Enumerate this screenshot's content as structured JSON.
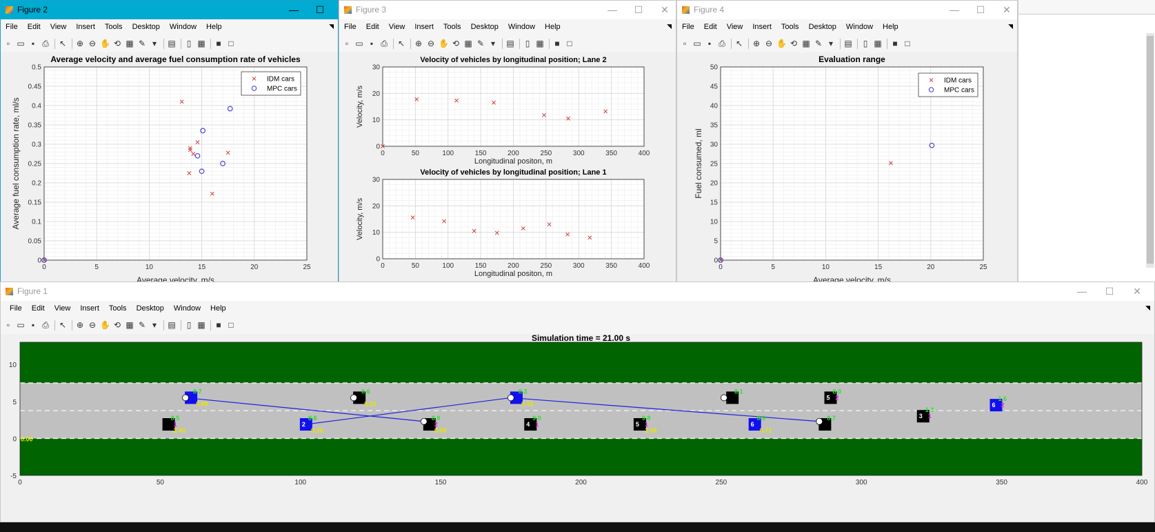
{
  "windows": {
    "fig2": {
      "title": "Figure 2",
      "active": true
    },
    "fig3": {
      "title": "Figure 3"
    },
    "fig4": {
      "title": "Figure 4"
    },
    "fig1": {
      "title": "Figure 1"
    }
  },
  "menu": [
    "File",
    "Edit",
    "View",
    "Insert",
    "Tools",
    "Desktop",
    "Window",
    "Help"
  ],
  "title_buttons": {
    "minimize": "—",
    "maximize": "☐",
    "close": "✕"
  },
  "colors": {
    "idm": "#d04040",
    "mpc": "#3a3ad0",
    "road": "#c0c0c0",
    "grass": "#006400",
    "titlebar_active": "#00aad0"
  },
  "chart_data": [
    {
      "id": "fig2",
      "type": "scatter",
      "title": "Average velocity and average fuel consumption rate of vehicles",
      "xlabel": "Average velocity, m/s",
      "ylabel": "Average fuel consumption rate, ml/s",
      "xlim": [
        0,
        25
      ],
      "ylim": [
        0,
        0.5
      ],
      "xticks": [
        "0",
        "5",
        "10",
        "15",
        "20",
        "25"
      ],
      "yticks": [
        "0",
        "0.05",
        "0.1",
        "0.15",
        "0.2",
        "0.25",
        "0.3",
        "0.35",
        "0.4",
        "0.45",
        "0.5"
      ],
      "grid": true,
      "legend": "top-right",
      "series": [
        {
          "name": "IDM cars",
          "marker": "x",
          "points": [
            [
              0,
              0
            ],
            [
              13.1,
              0.41
            ],
            [
              13.9,
              0.29
            ],
            [
              13.9,
              0.285
            ],
            [
              14.2,
              0.275
            ],
            [
              14.6,
              0.305
            ],
            [
              13.8,
              0.225
            ],
            [
              16.0,
              0.172
            ],
            [
              17.5,
              0.278
            ]
          ]
        },
        {
          "name": "MPC cars",
          "marker": "o",
          "points": [
            [
              0,
              0
            ],
            [
              15.1,
              0.335
            ],
            [
              14.6,
              0.27
            ],
            [
              15.0,
              0.23
            ],
            [
              17.0,
              0.25
            ],
            [
              17.7,
              0.392
            ]
          ]
        }
      ]
    },
    {
      "id": "fig3a",
      "type": "scatter",
      "title": "Velocity of vehicles by longitudinal position; Lane 2",
      "xlabel": "Longitudinal positon, m",
      "ylabel": "Velocity, m/s",
      "xlim": [
        0,
        400
      ],
      "ylim": [
        0,
        30
      ],
      "xticks": [
        "0",
        "50",
        "100",
        "150",
        "200",
        "250",
        "300",
        "350",
        "400"
      ],
      "yticks": [
        "0",
        "10",
        "20",
        "30"
      ],
      "grid": true,
      "series": [
        {
          "marker": "x",
          "points": [
            [
              0,
              0
            ],
            [
              52,
              17.8
            ],
            [
              113,
              17.3
            ],
            [
              170,
              16.5
            ],
            [
              247,
              11.8
            ],
            [
              284,
              10.5
            ],
            [
              341,
              13.2
            ]
          ]
        }
      ]
    },
    {
      "id": "fig3b",
      "type": "scatter",
      "title": "Velocity of vehicles by longitudinal position; Lane 1",
      "xlabel": "Longitudinal positon, m",
      "ylabel": "Velocity, m/s",
      "xlim": [
        0,
        400
      ],
      "ylim": [
        0,
        30
      ],
      "xticks": [
        "0",
        "50",
        "100",
        "150",
        "200",
        "250",
        "300",
        "350",
        "400"
      ],
      "yticks": [
        "0",
        "10",
        "20",
        "30"
      ],
      "grid": true,
      "series": [
        {
          "marker": "x",
          "points": [
            [
              46,
              15.6
            ],
            [
              94,
              14.2
            ],
            [
              140,
              10.5
            ],
            [
              175,
              9.8
            ],
            [
              215,
              11.5
            ],
            [
              255,
              13.0
            ],
            [
              283,
              9.2
            ],
            [
              317,
              8.0
            ]
          ]
        }
      ]
    },
    {
      "id": "fig4",
      "type": "scatter",
      "title": "Evaluation range",
      "xlabel": "Average velocity, m/s",
      "ylabel": "Fuel consumed, ml",
      "xlim": [
        0,
        25
      ],
      "ylim": [
        0,
        50
      ],
      "xticks": [
        "0",
        "5",
        "10",
        "15",
        "20",
        "25"
      ],
      "yticks": [
        "0",
        "5",
        "10",
        "15",
        "20",
        "25",
        "30",
        "35",
        "40",
        "45",
        "50"
      ],
      "grid": true,
      "legend": "top-right",
      "series": [
        {
          "name": "IDM cars",
          "marker": "x",
          "points": [
            [
              0,
              0
            ],
            [
              16.2,
              25.1
            ]
          ]
        },
        {
          "name": "MPC cars",
          "marker": "o",
          "points": [
            [
              0,
              0
            ],
            [
              20.1,
              29.7
            ]
          ]
        }
      ]
    },
    {
      "id": "fig1",
      "type": "scatter",
      "title": "Simulation time = 21.00 s",
      "xlim": [
        0,
        400
      ],
      "ylim": [
        -5,
        13
      ],
      "xticks": [
        "0",
        "50",
        "100",
        "150",
        "200",
        "250",
        "300",
        "350",
        "400"
      ],
      "yticks": [
        "-5",
        "0",
        "5",
        "10"
      ],
      "road": {
        "lane_lines": [
          7.5,
          3.75,
          0
        ],
        "grass": [
          [
            -5,
            0
          ],
          [
            7.5,
            13
          ]
        ]
      },
      "vehicles": [
        {
          "id": "",
          "type": "mpc",
          "x": 61,
          "y": 5.5,
          "labels": [
            "8.7",
            "",
            "0.09"
          ]
        },
        {
          "id": "",
          "type": "idm",
          "x": 121,
          "y": 5.5,
          "labels": [
            "8.6",
            "",
            "0.15"
          ]
        },
        {
          "id": "",
          "type": "mpc",
          "x": 177,
          "y": 5.5,
          "labels": [
            "8.3",
            "",
            "0.15"
          ]
        },
        {
          "id": "",
          "type": "idm",
          "x": 254,
          "y": 5.5,
          "labels": [
            "8.1",
            "",
            ""
          ]
        },
        {
          "id": "5",
          "type": "idm",
          "x": 289,
          "y": 5.5,
          "labels": [
            "8.0",
            "2",
            ""
          ]
        },
        {
          "id": "3",
          "type": "idm",
          "x": 322,
          "y": 3.0,
          "labels": [
            "1.3",
            "1",
            ""
          ]
        },
        {
          "id": "6",
          "type": "mpc",
          "x": 348,
          "y": 4.5,
          "labels": [
            "1.6",
            "2",
            ""
          ]
        },
        {
          "id": "",
          "type": "idm",
          "x": 53,
          "y": 1.9,
          "labels": [
            "8.5",
            "1",
            "2.40"
          ]
        },
        {
          "id": "2",
          "type": "mpc",
          "x": 102,
          "y": 1.9,
          "labels": [
            "8.8",
            "",
            "0.26"
          ]
        },
        {
          "id": "",
          "type": "idm",
          "x": 146,
          "y": 1.9,
          "labels": [
            "8.9",
            "2",
            "0.09"
          ]
        },
        {
          "id": "4",
          "type": "idm",
          "x": 182,
          "y": 1.9,
          "labels": [
            "9.0",
            "1",
            ""
          ]
        },
        {
          "id": "5",
          "type": "idm",
          "x": 221,
          "y": 1.9,
          "labels": [
            "9.8",
            "1",
            "1.09"
          ]
        },
        {
          "id": "6",
          "type": "mpc",
          "x": 262,
          "y": 1.9,
          "labels": [
            "8.8",
            "",
            "0.71"
          ]
        },
        {
          "id": "",
          "type": "idm",
          "x": 287,
          "y": 1.9,
          "labels": [
            "8.7",
            "",
            ""
          ]
        }
      ],
      "start_label": "0.00",
      "links": [
        [
          [
            59,
            5.5
          ],
          [
            144,
            2.3
          ]
        ],
        [
          [
            102,
            1.9
          ],
          [
            175,
            5.5
          ]
        ],
        [
          [
            175,
            5.5
          ],
          [
            285,
            2.3
          ]
        ]
      ]
    }
  ]
}
